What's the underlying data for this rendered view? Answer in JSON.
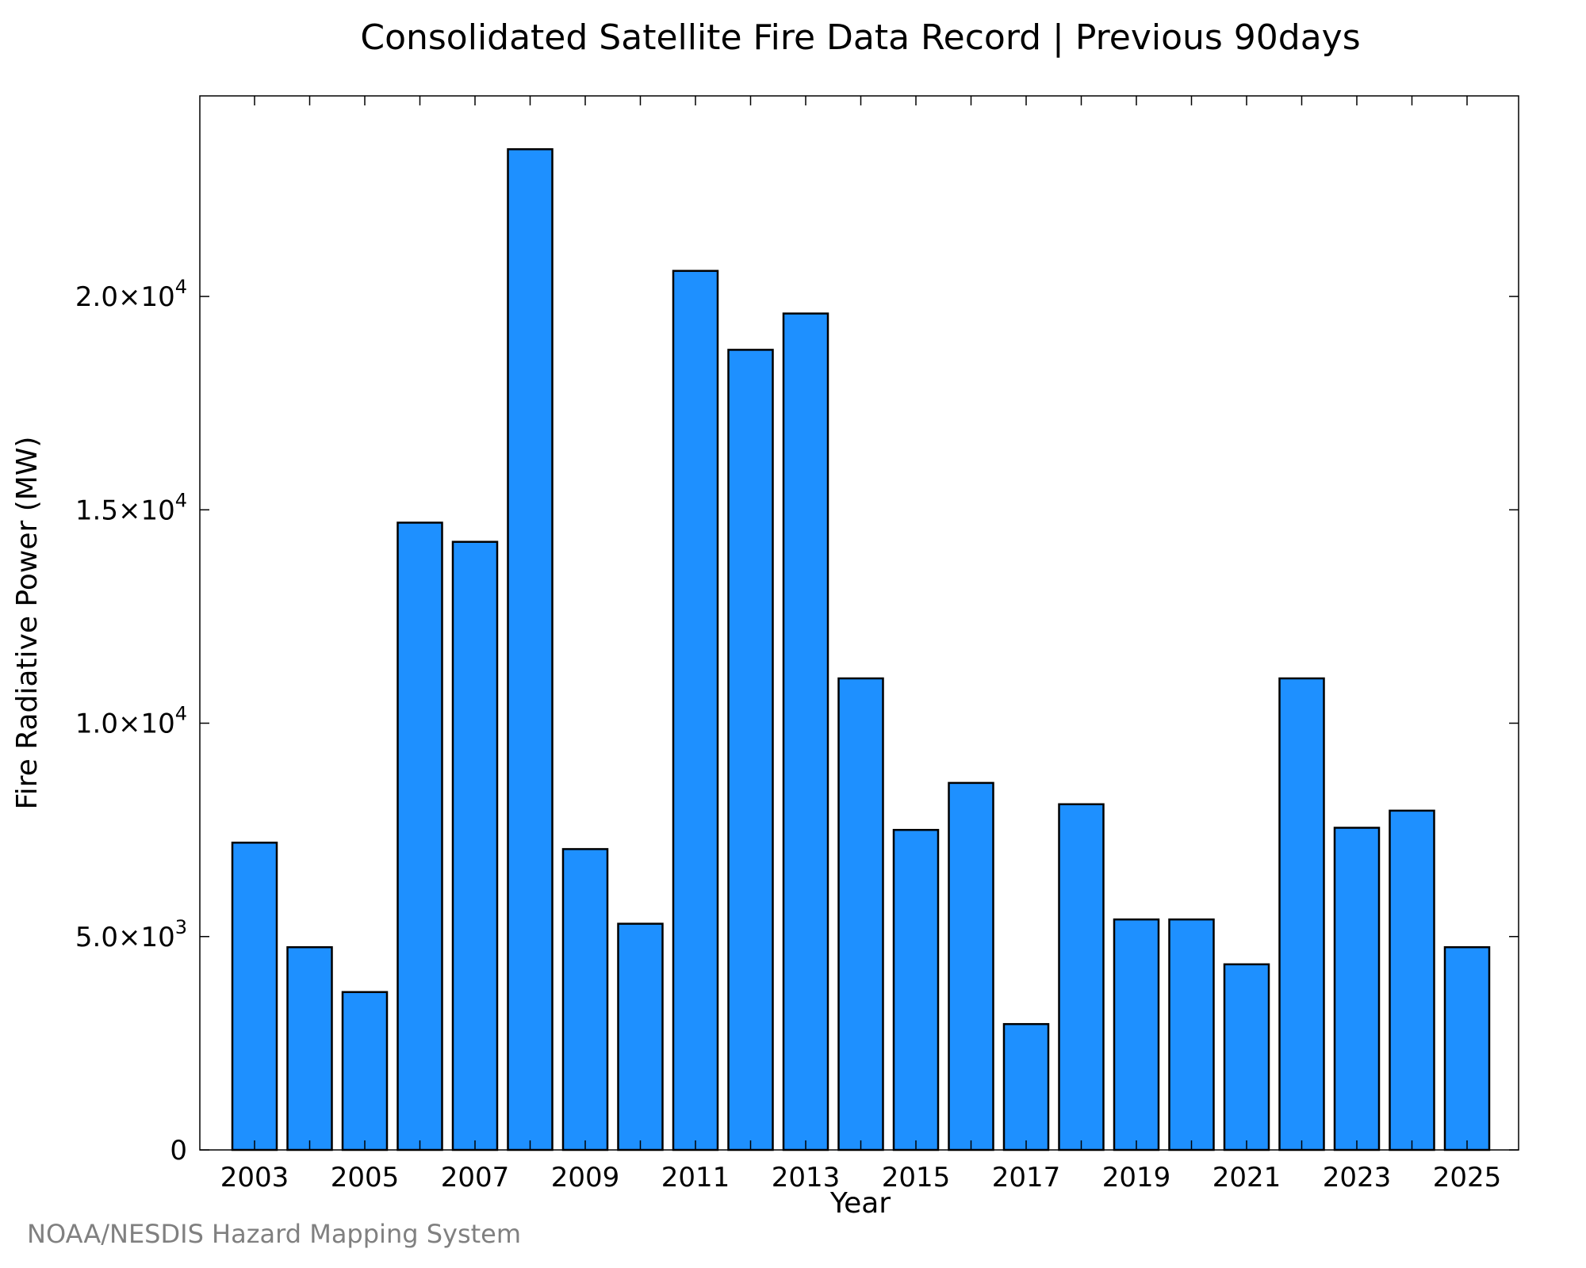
{
  "chart_data": {
    "type": "bar",
    "title": "Consolidated Satellite Fire Data Record | Previous 90days",
    "xlabel": "Year",
    "ylabel": "Fire Radiative Power (MW)",
    "categories": [
      "2003",
      "2004",
      "2005",
      "2006",
      "2007",
      "2008",
      "2009",
      "2010",
      "2011",
      "2012",
      "2013",
      "2014",
      "2015",
      "2016",
      "2017",
      "2018",
      "2019",
      "2020",
      "2021",
      "2022",
      "2023",
      "2024",
      "2025"
    ],
    "x_tick_labels": [
      "2003",
      "2005",
      "2007",
      "2009",
      "2011",
      "2013",
      "2015",
      "2017",
      "2019",
      "2021",
      "2023",
      "2025"
    ],
    "values": [
      7200,
      4750,
      3700,
      14700,
      14250,
      23450,
      7050,
      5300,
      20600,
      18750,
      19600,
      11050,
      7500,
      8600,
      2950,
      8100,
      5400,
      5400,
      4350,
      11050,
      7550,
      7950,
      4750
    ],
    "y_ticks": [
      {
        "value": 0,
        "mantissa": "0",
        "exponent": ""
      },
      {
        "value": 5000,
        "mantissa": "5.0×10",
        "exponent": "3"
      },
      {
        "value": 10000,
        "mantissa": "1.0×10",
        "exponent": "4"
      },
      {
        "value": 15000,
        "mantissa": "1.5×10",
        "exponent": "4"
      },
      {
        "value": 20000,
        "mantissa": "2.0×10",
        "exponent": "4"
      }
    ],
    "ylim": [
      0,
      24700
    ],
    "grid": false,
    "bar_color": "#1e90ff",
    "edge_color": "#000000"
  },
  "credit": "NOAA/NESDIS Hazard Mapping System"
}
